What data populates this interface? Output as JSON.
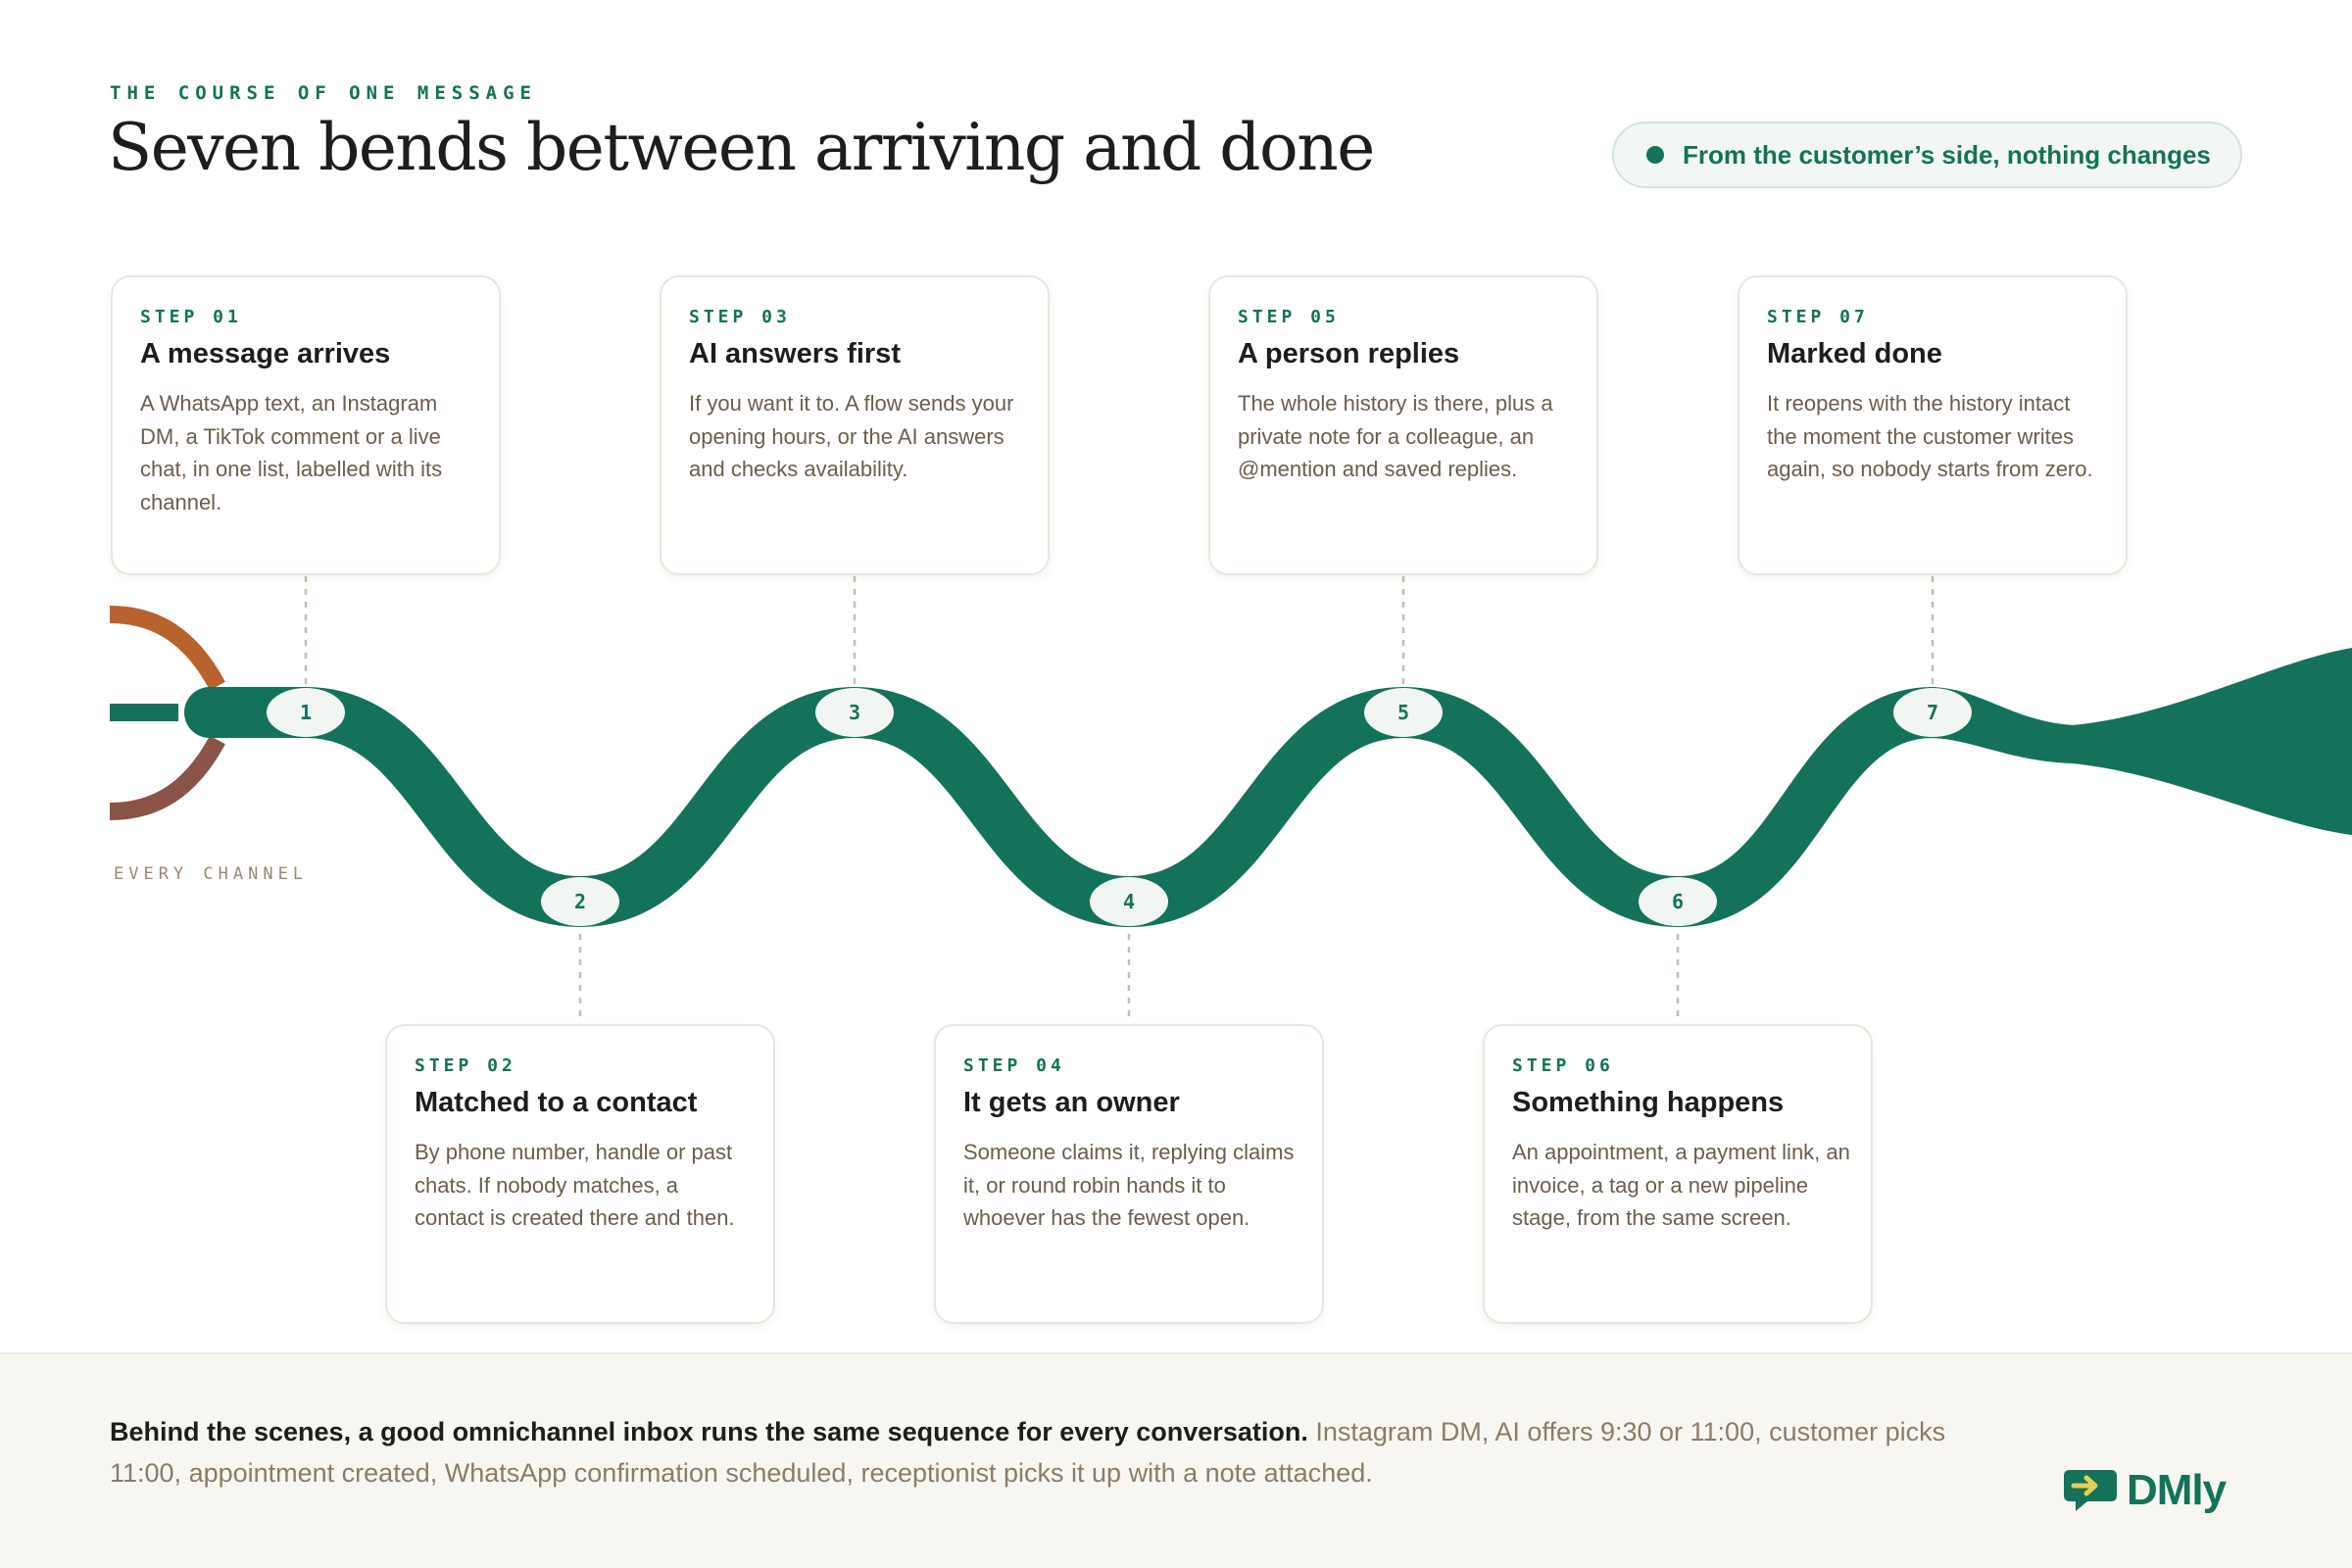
{
  "header": {
    "eyebrow": "THE COURSE OF ONE MESSAGE",
    "title": "Seven bends between arriving and done",
    "pill": "From the customer’s side, nothing changes"
  },
  "river": {
    "channel_label": "EVERY CHANNEL",
    "colors": {
      "river": "#14725a",
      "channel_top": "#b8632d",
      "channel_bottom": "#8b5348",
      "node_fill": "#f2f6f3",
      "connector": "#c9beab"
    }
  },
  "steps": [
    {
      "num": "1",
      "label": "STEP 01",
      "title": "A message arrives",
      "desc": "A WhatsApp text, an Instagram DM, a TikTok comment or a live chat, in one list, labelled with its channel."
    },
    {
      "num": "2",
      "label": "STEP 02",
      "title": "Matched to a contact",
      "desc": "By phone number, handle or past chats. If nobody matches, a contact is created there and then."
    },
    {
      "num": "3",
      "label": "STEP 03",
      "title": "AI answers first",
      "desc": "If you want it to. A flow sends your opening hours, or the AI answers and checks availability."
    },
    {
      "num": "4",
      "label": "STEP 04",
      "title": "It gets an owner",
      "desc": "Someone claims it, replying claims it, or round robin hands it to whoever has the fewest open."
    },
    {
      "num": "5",
      "label": "STEP 05",
      "title": "A person replies",
      "desc": "The whole history is there, plus a private note for a colleague, an @mention and saved replies."
    },
    {
      "num": "6",
      "label": "STEP 06",
      "title": "Something happens",
      "desc": "An appointment, a payment link, an invoice, a tag or a new pipeline stage, from the same screen."
    },
    {
      "num": "7",
      "label": "STEP 07",
      "title": "Marked done",
      "desc": "It reopens with the history intact the moment the customer writes again, so nobody starts from zero."
    }
  ],
  "footer": {
    "lead": "Behind the scenes, a good omnichannel inbox runs the same sequence for every conversation.",
    "rest": "Instagram DM, AI offers 9:30 or 11:00, customer picks 11:00, appointment created, WhatsApp confirmation scheduled, receptionist picks it up with a note attached.",
    "logo": "DMly",
    "logo_icon": "chat-arrow-icon"
  }
}
